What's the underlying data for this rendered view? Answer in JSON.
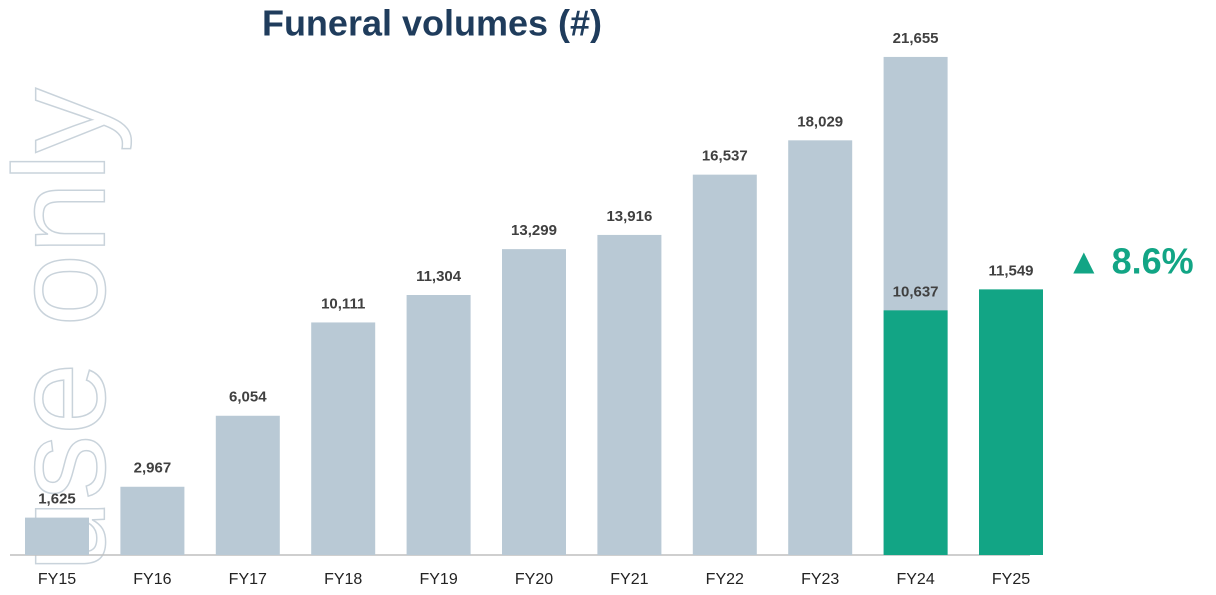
{
  "chart_data": {
    "type": "bar",
    "title": "Funeral volumes (#)",
    "watermark": "use only",
    "annotation": "▲ 8.6%",
    "annotation_color": "#12a585",
    "categories": [
      "FY15",
      "FY16",
      "FY17",
      "FY18",
      "FY19",
      "FY20",
      "FY21",
      "FY22",
      "FY23",
      "FY24",
      "FY25"
    ],
    "series": [
      {
        "color": "#b9c9d5",
        "values": [
          1625,
          2967,
          6054,
          10111,
          11304,
          13299,
          13916,
          16537,
          18029,
          21655,
          null
        ],
        "value_labels": [
          "1,625",
          "2,967",
          "6,054",
          "10,111",
          "11,304",
          "13,299",
          "13,916",
          "16,537",
          "18,029",
          "21,655",
          null
        ]
      },
      {
        "color": "#12a585",
        "values": [
          null,
          null,
          null,
          null,
          null,
          null,
          null,
          null,
          null,
          10637,
          11549
        ],
        "value_labels": [
          null,
          null,
          null,
          null,
          null,
          null,
          null,
          null,
          null,
          "10,637",
          "11,549"
        ]
      }
    ],
    "ylim": [
      0,
      22000
    ]
  }
}
